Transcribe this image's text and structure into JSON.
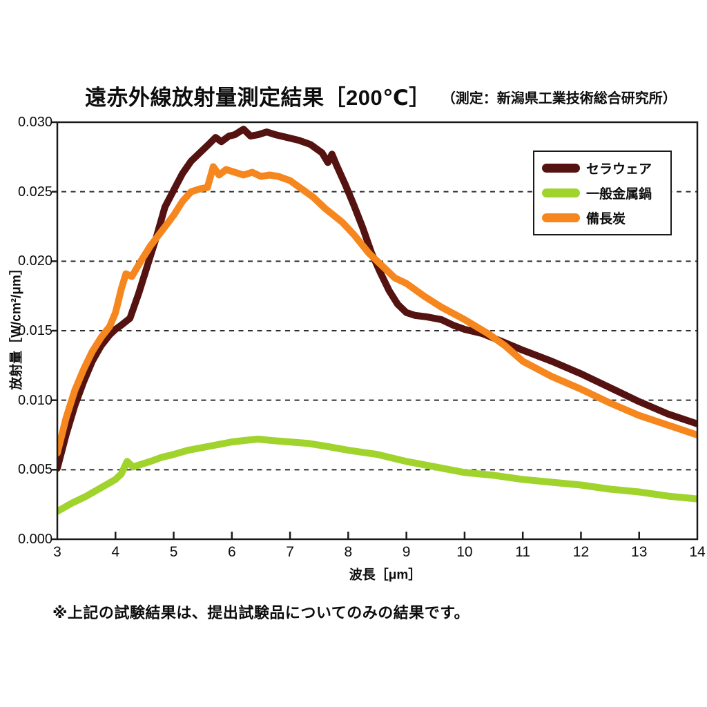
{
  "header": {
    "title": "遠赤外線放射量測定結果［200℃］",
    "subtitle": "（測定：新潟県工業技術総合研究所）"
  },
  "footnote": "※上記の試験結果は、提出試験品についてのみの結果です。",
  "colors": {
    "axis": "#1a1a1a",
    "grid": "#2e2e2e",
    "text": "#0d0d0d"
  },
  "chart_data": {
    "type": "line",
    "title": "遠赤外線放射量測定結果［200℃］",
    "subtitle": "（測定：新潟県工業技術総合研究所）",
    "xlabel": "波長［μm］",
    "ylabel": "放射量［W/cm²/μm］",
    "xlim": [
      3,
      14
    ],
    "ylim": [
      0,
      0.03
    ],
    "x_ticks": [
      3,
      4,
      5,
      6,
      7,
      8,
      9,
      10,
      11,
      12,
      13,
      14
    ],
    "y_ticks": [
      0,
      0.005,
      0.01,
      0.015,
      0.02,
      0.025,
      0.03
    ],
    "y_tick_labels": [
      "0.000",
      "0.005",
      "0.010",
      "0.015",
      "0.020",
      "0.025",
      "0.030"
    ],
    "grid": "horizontal-dashed",
    "legend_position": "top-right",
    "series": [
      {
        "name": "セラウェア",
        "slug": "ceraware",
        "color": "#541310",
        "points": [
          [
            3.0,
            0.0051
          ],
          [
            3.15,
            0.0075
          ],
          [
            3.3,
            0.0096
          ],
          [
            3.45,
            0.0113
          ],
          [
            3.6,
            0.0128
          ],
          [
            3.75,
            0.0139
          ],
          [
            3.9,
            0.0147
          ],
          [
            4.0,
            0.0151
          ],
          [
            4.1,
            0.0154
          ],
          [
            4.25,
            0.0159
          ],
          [
            4.4,
            0.0177
          ],
          [
            4.55,
            0.0197
          ],
          [
            4.7,
            0.0217
          ],
          [
            4.85,
            0.0239
          ],
          [
            5.0,
            0.0251
          ],
          [
            5.15,
            0.0263
          ],
          [
            5.3,
            0.0272
          ],
          [
            5.45,
            0.0278
          ],
          [
            5.6,
            0.0284
          ],
          [
            5.72,
            0.0289
          ],
          [
            5.82,
            0.0286
          ],
          [
            5.95,
            0.029
          ],
          [
            6.05,
            0.0291
          ],
          [
            6.2,
            0.0295
          ],
          [
            6.32,
            0.029
          ],
          [
            6.45,
            0.0291
          ],
          [
            6.6,
            0.0293
          ],
          [
            6.75,
            0.0291
          ],
          [
            6.95,
            0.0289
          ],
          [
            7.15,
            0.0287
          ],
          [
            7.35,
            0.0284
          ],
          [
            7.55,
            0.0278
          ],
          [
            7.65,
            0.0271
          ],
          [
            7.72,
            0.0277
          ],
          [
            7.8,
            0.0269
          ],
          [
            7.95,
            0.0255
          ],
          [
            8.1,
            0.024
          ],
          [
            8.25,
            0.0224
          ],
          [
            8.4,
            0.0206
          ],
          [
            8.55,
            0.0192
          ],
          [
            8.7,
            0.0179
          ],
          [
            8.85,
            0.0169
          ],
          [
            9.0,
            0.0163
          ],
          [
            9.15,
            0.0161
          ],
          [
            9.35,
            0.016
          ],
          [
            9.6,
            0.0158
          ],
          [
            9.8,
            0.0154
          ],
          [
            10.0,
            0.0151
          ],
          [
            10.3,
            0.0148
          ],
          [
            10.6,
            0.0143
          ],
          [
            11.0,
            0.0136
          ],
          [
            11.5,
            0.0128
          ],
          [
            12.0,
            0.0119
          ],
          [
            12.5,
            0.0109
          ],
          [
            13.0,
            0.0099
          ],
          [
            13.5,
            0.009
          ],
          [
            14.0,
            0.0083
          ]
        ]
      },
      {
        "name": "一般金属鍋",
        "slug": "metal-pot",
        "color": "#A0D32C",
        "points": [
          [
            3.0,
            0.002
          ],
          [
            3.25,
            0.0026
          ],
          [
            3.5,
            0.0031
          ],
          [
            3.75,
            0.0037
          ],
          [
            4.0,
            0.0043
          ],
          [
            4.1,
            0.0047
          ],
          [
            4.2,
            0.0056
          ],
          [
            4.3,
            0.0052
          ],
          [
            4.45,
            0.0054
          ],
          [
            4.6,
            0.0056
          ],
          [
            4.8,
            0.0059
          ],
          [
            5.0,
            0.0061
          ],
          [
            5.25,
            0.0064
          ],
          [
            5.5,
            0.0066
          ],
          [
            5.75,
            0.0068
          ],
          [
            6.0,
            0.007
          ],
          [
            6.2,
            0.0071
          ],
          [
            6.45,
            0.0072
          ],
          [
            6.7,
            0.0071
          ],
          [
            7.0,
            0.007
          ],
          [
            7.3,
            0.0069
          ],
          [
            7.6,
            0.0067
          ],
          [
            8.0,
            0.0064
          ],
          [
            8.5,
            0.0061
          ],
          [
            9.0,
            0.0056
          ],
          [
            9.5,
            0.0052
          ],
          [
            10.0,
            0.0048
          ],
          [
            10.5,
            0.0046
          ],
          [
            11.0,
            0.0043
          ],
          [
            11.5,
            0.0041
          ],
          [
            12.0,
            0.0039
          ],
          [
            12.5,
            0.0036
          ],
          [
            13.0,
            0.0034
          ],
          [
            13.5,
            0.0031
          ],
          [
            14.0,
            0.0029
          ]
        ]
      },
      {
        "name": "備長炭",
        "slug": "binchotan",
        "color": "#F6871E",
        "points": [
          [
            3.0,
            0.0062
          ],
          [
            3.15,
            0.0087
          ],
          [
            3.3,
            0.0107
          ],
          [
            3.45,
            0.0122
          ],
          [
            3.6,
            0.0135
          ],
          [
            3.75,
            0.0145
          ],
          [
            3.9,
            0.0153
          ],
          [
            4.0,
            0.0163
          ],
          [
            4.1,
            0.018
          ],
          [
            4.18,
            0.0191
          ],
          [
            4.28,
            0.0189
          ],
          [
            4.45,
            0.0201
          ],
          [
            4.6,
            0.0211
          ],
          [
            4.8,
            0.0222
          ],
          [
            5.0,
            0.0233
          ],
          [
            5.15,
            0.0243
          ],
          [
            5.3,
            0.025
          ],
          [
            5.45,
            0.0252
          ],
          [
            5.58,
            0.0253
          ],
          [
            5.68,
            0.0268
          ],
          [
            5.78,
            0.0262
          ],
          [
            5.9,
            0.0266
          ],
          [
            6.05,
            0.0264
          ],
          [
            6.2,
            0.0262
          ],
          [
            6.35,
            0.0264
          ],
          [
            6.5,
            0.0261
          ],
          [
            6.65,
            0.0262
          ],
          [
            6.8,
            0.0261
          ],
          [
            7.0,
            0.0258
          ],
          [
            7.2,
            0.0252
          ],
          [
            7.4,
            0.0246
          ],
          [
            7.6,
            0.0238
          ],
          [
            7.75,
            0.0233
          ],
          [
            7.9,
            0.0228
          ],
          [
            8.1,
            0.0219
          ],
          [
            8.35,
            0.0206
          ],
          [
            8.6,
            0.0196
          ],
          [
            8.8,
            0.0188
          ],
          [
            9.0,
            0.0184
          ],
          [
            9.3,
            0.0175
          ],
          [
            9.6,
            0.0167
          ],
          [
            10.0,
            0.0158
          ],
          [
            10.4,
            0.0148
          ],
          [
            10.7,
            0.0139
          ],
          [
            11.0,
            0.0128
          ],
          [
            11.5,
            0.0117
          ],
          [
            12.0,
            0.0108
          ],
          [
            12.5,
            0.0098
          ],
          [
            13.0,
            0.0089
          ],
          [
            13.5,
            0.0082
          ],
          [
            14.0,
            0.0075
          ]
        ]
      }
    ],
    "legend": [
      {
        "label": "セラウェア",
        "color": "#541310"
      },
      {
        "label": "一般金属鍋",
        "color": "#A0D32C"
      },
      {
        "label": "備長炭",
        "color": "#F6871E"
      }
    ]
  }
}
